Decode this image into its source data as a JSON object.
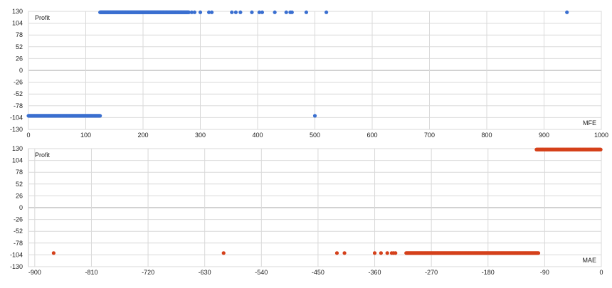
{
  "colors": {
    "grid": "#d9d9d9",
    "axis": "#a6a6a6",
    "panel_border": "#c8c8c8",
    "mfe_points": "#3a6fd0",
    "mae_points": "#d5401a"
  },
  "chart_data": [
    {
      "type": "scatter",
      "title": "",
      "ylabel": "Profit",
      "xlabel": "MFE",
      "xlim": [
        0,
        1000
      ],
      "ylim": [
        -130,
        130
      ],
      "xticks": [
        0,
        100,
        200,
        300,
        400,
        500,
        600,
        700,
        800,
        900,
        1000
      ],
      "yticks": [
        130,
        104,
        78,
        52,
        26,
        0,
        -26,
        -52,
        -78,
        -104,
        -130
      ],
      "grid": true,
      "series": [
        {
          "color": "#3a6fd0",
          "point_groups": [
            {
              "y": -100,
              "x_range": [
                0,
                125
              ],
              "step": 1
            },
            {
              "y": 128,
              "x_range": [
                125,
                280
              ],
              "step": 1
            }
          ],
          "points": [
            [
              285,
              128
            ],
            [
              290,
              128
            ],
            [
              300,
              128
            ],
            [
              315,
              128
            ],
            [
              320,
              128
            ],
            [
              355,
              128
            ],
            [
              362,
              128
            ],
            [
              370,
              128
            ],
            [
              390,
              128
            ],
            [
              403,
              128
            ],
            [
              408,
              128
            ],
            [
              430,
              128
            ],
            [
              450,
              128
            ],
            [
              457,
              128
            ],
            [
              460,
              128
            ],
            [
              485,
              128
            ],
            [
              520,
              128
            ],
            [
              940,
              128
            ],
            [
              500,
              -100
            ]
          ]
        }
      ]
    },
    {
      "type": "scatter",
      "title": "",
      "ylabel": "Profit",
      "xlabel": "MAE",
      "xlim": [
        -910,
        0
      ],
      "ylim": [
        -130,
        130
      ],
      "xticks": [
        -900,
        -810,
        -720,
        -630,
        -540,
        -450,
        -360,
        -270,
        -180,
        -90,
        0
      ],
      "yticks": [
        130,
        104,
        78,
        52,
        26,
        0,
        -26,
        -52,
        -78,
        -104,
        -130
      ],
      "grid": true,
      "series": [
        {
          "color": "#d5401a",
          "point_groups": [
            {
              "y": -100,
              "x_range": [
                -310,
                -100
              ],
              "step": 1
            },
            {
              "y": 128,
              "x_range": [
                -103,
                -1
              ],
              "step": 1
            }
          ],
          "points": [
            [
              -870,
              -100
            ],
            [
              -600,
              -100
            ],
            [
              -420,
              -100
            ],
            [
              -408,
              -100
            ],
            [
              -360,
              -100
            ],
            [
              -350,
              -100
            ],
            [
              -340,
              -100
            ],
            [
              -333,
              -100
            ],
            [
              -330,
              -100
            ],
            [
              -327,
              -100
            ]
          ]
        }
      ]
    }
  ]
}
